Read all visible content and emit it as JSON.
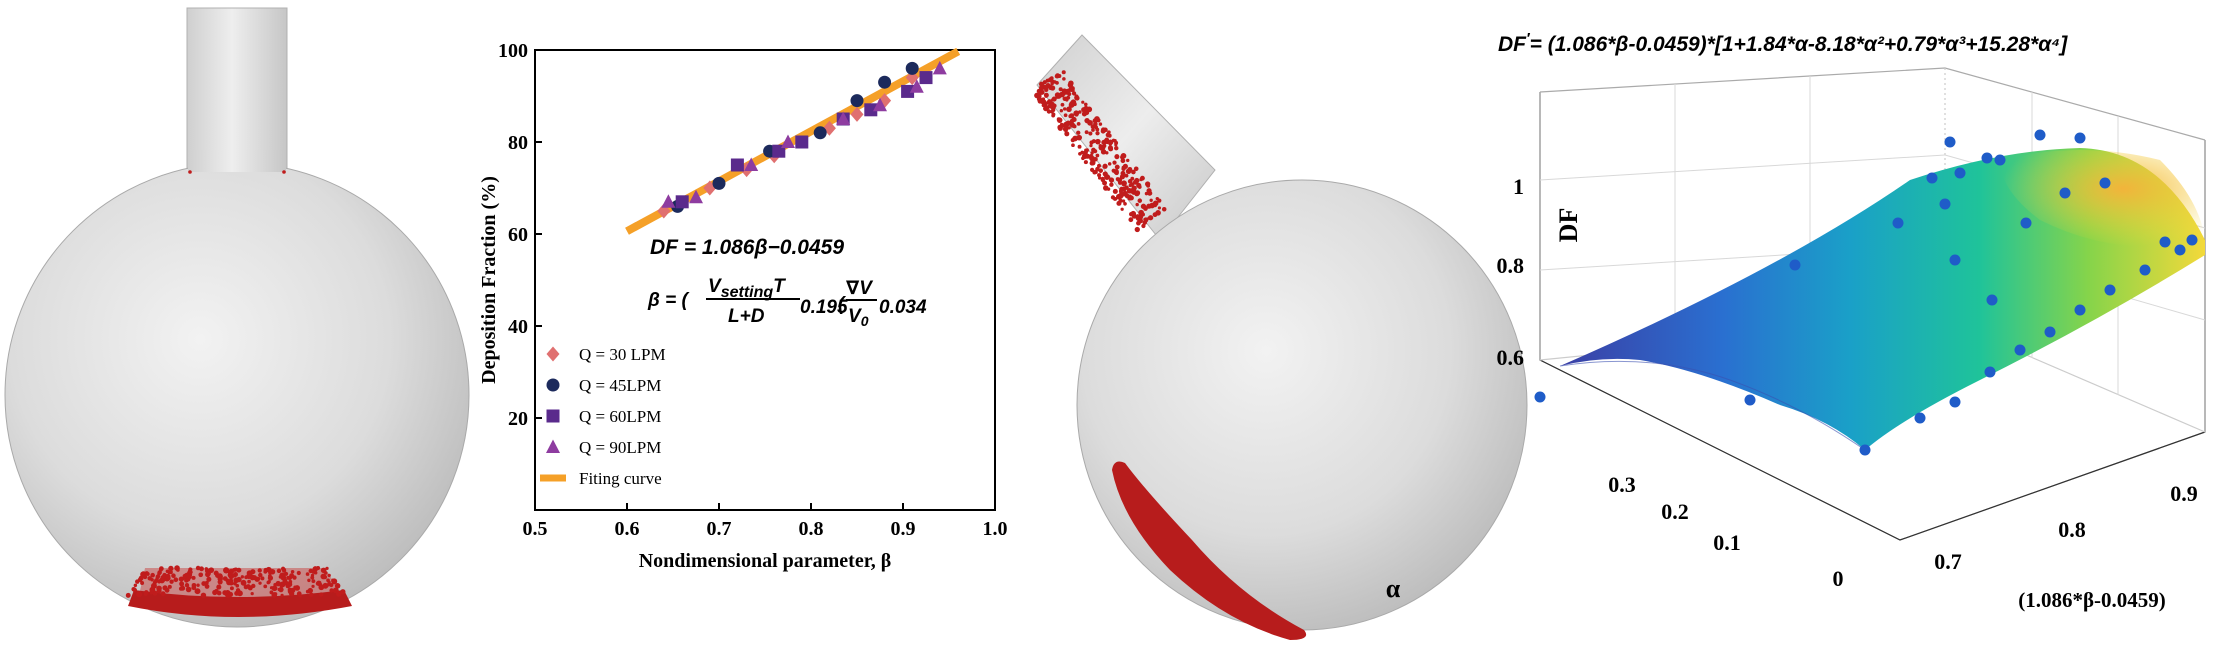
{
  "chart_data": [
    {
      "type": "scatter",
      "xlabel": "Nondimensional parameter, β",
      "ylabel": "Deposition Fraction (%)",
      "xlim": [
        0.5,
        1.0
      ],
      "ylim": [
        0,
        100
      ],
      "x_ticks": [
        "0.5",
        "0.6",
        "0.7",
        "0.8",
        "0.9",
        "1.0"
      ],
      "y_ticks": [
        "20",
        "40",
        "60",
        "80",
        "100"
      ],
      "equation_df": "DF = 1.086β−0.0459",
      "equation_beta": {
        "prefix": "β = (",
        "numerator": "V",
        "numerator_sub": "setting",
        "numerator_suffix": "T",
        "denominator": "L+D",
        "exp1": "0.195",
        "open2": "(",
        "num2": "∇V",
        "den2": "V",
        "den2_sub": "0",
        "exp2": "0.034"
      },
      "legend_position": "bottom-left",
      "series": [
        {
          "name": "Q = 30 LPM",
          "marker": "diamond",
          "color": "#e07070",
          "x": [
            0.64,
            0.69,
            0.73,
            0.76,
            0.82,
            0.85,
            0.88,
            0.91
          ],
          "y": [
            65.0,
            70.0,
            74.0,
            77.0,
            83.0,
            86.0,
            89.0,
            94.0
          ]
        },
        {
          "name": "Q = 45LPM",
          "marker": "circle",
          "color": "#1c2a5c",
          "x": [
            0.655,
            0.7,
            0.755,
            0.81,
            0.85,
            0.88,
            0.91
          ],
          "y": [
            66.0,
            71.0,
            78.0,
            82.0,
            89.0,
            93.0,
            96.0
          ]
        },
        {
          "name": "Q = 60LPM",
          "marker": "square",
          "color": "#5a2a8c",
          "x": [
            0.66,
            0.72,
            0.765,
            0.79,
            0.835,
            0.865,
            0.905,
            0.925
          ],
          "y": [
            67.0,
            75.0,
            78.0,
            80.0,
            85.0,
            87.0,
            91.0,
            94.0
          ]
        },
        {
          "name": "Q = 90LPM",
          "marker": "triangle",
          "color": "#8e3ca0",
          "x": [
            0.645,
            0.675,
            0.735,
            0.775,
            0.835,
            0.875,
            0.915,
            0.94
          ],
          "y": [
            67.0,
            68.0,
            75.0,
            80.0,
            85.0,
            88.0,
            92.0,
            96.0
          ]
        }
      ],
      "fit": {
        "name": "Fiting curve",
        "color": "#f5a028",
        "x": [
          0.6,
          0.96
        ],
        "y": [
          60.6,
          99.7
        ]
      }
    },
    {
      "type": "surface",
      "title_prefix": "DF",
      "title_prime": "′",
      "title_formula": "= (1.086*β-0.0459)*[1+1.84*α-8.18*α²+0.79*α³+15.28*α⁴]",
      "zlabel": "DF",
      "ylabel": "α",
      "xlabel": "(1.086*β-0.0459)",
      "z_ticks": [
        "0.6",
        "0.8",
        "1"
      ],
      "y_ticks": [
        "0",
        "0.1",
        "0.2",
        "0.3"
      ],
      "x_ticks": [
        "0.7",
        "0.8",
        "0.9"
      ],
      "colormap": [
        "#3b3fa5",
        "#2a6fd0",
        "#1aa0c8",
        "#1fc39a",
        "#86d44a",
        "#f3d93a"
      ]
    }
  ]
}
